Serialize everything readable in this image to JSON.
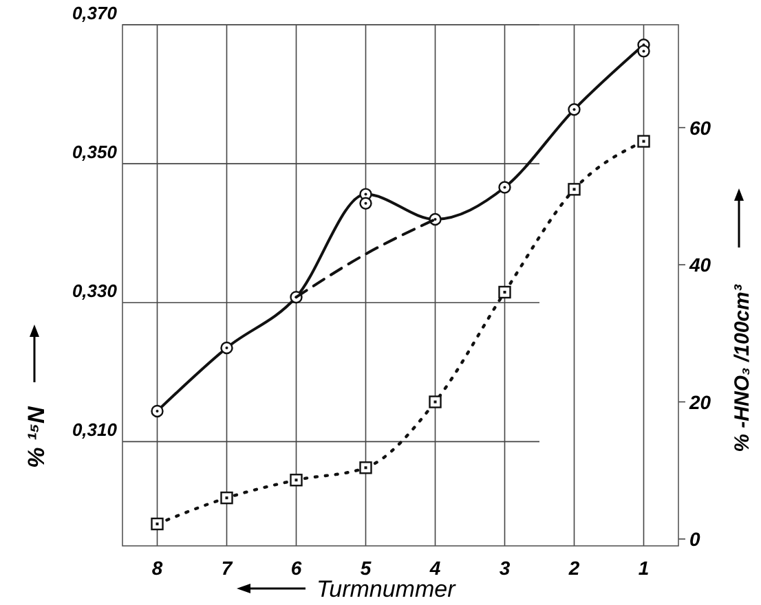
{
  "chart_data": {
    "type": "line",
    "xlabel": "Turmnummer",
    "ylabel": "% ¹⁵N",
    "y2label": "% -HNO₃ /100cm³",
    "categories": [
      "8",
      "7",
      "6",
      "5",
      "4",
      "3",
      "2",
      "1"
    ],
    "series": [
      {
        "type": "line",
        "color": "#111111",
        "marker": "circle",
        "line_style": "solid",
        "values": [
          0.3144,
          0.3235,
          0.3308,
          0.3456,
          0.342,
          0.3466,
          0.3578,
          0.3671
        ]
      },
      {
        "type": "scatter",
        "color": "#111111",
        "marker": "circle",
        "values": [
          null,
          null,
          null,
          0.3443,
          null,
          null,
          null,
          0.3662
        ]
      },
      {
        "type": "line",
        "color": "#111111",
        "marker": "none",
        "line_style": "dashed",
        "values": [
          null,
          null,
          0.3308,
          0.337,
          0.342,
          null,
          null,
          null
        ]
      },
      {
        "type": "line",
        "color": "#111111",
        "marker": "square",
        "line_style": "dotted",
        "axis": "y2",
        "values": [
          2.2,
          6,
          8.6,
          10.4,
          20,
          36,
          51,
          58
        ]
      }
    ],
    "ylim": [
      0.295,
      0.37
    ],
    "yticks": [
      {
        "value": 0.31,
        "label": "0,310"
      },
      {
        "value": 0.33,
        "label": "0,330"
      },
      {
        "value": 0.35,
        "label": "0,350"
      },
      {
        "value": 0.37,
        "label": "0,370"
      }
    ],
    "y2lim": [
      -1,
      75
    ],
    "y2ticks": [
      0,
      20,
      40,
      60
    ],
    "grid": true
  }
}
